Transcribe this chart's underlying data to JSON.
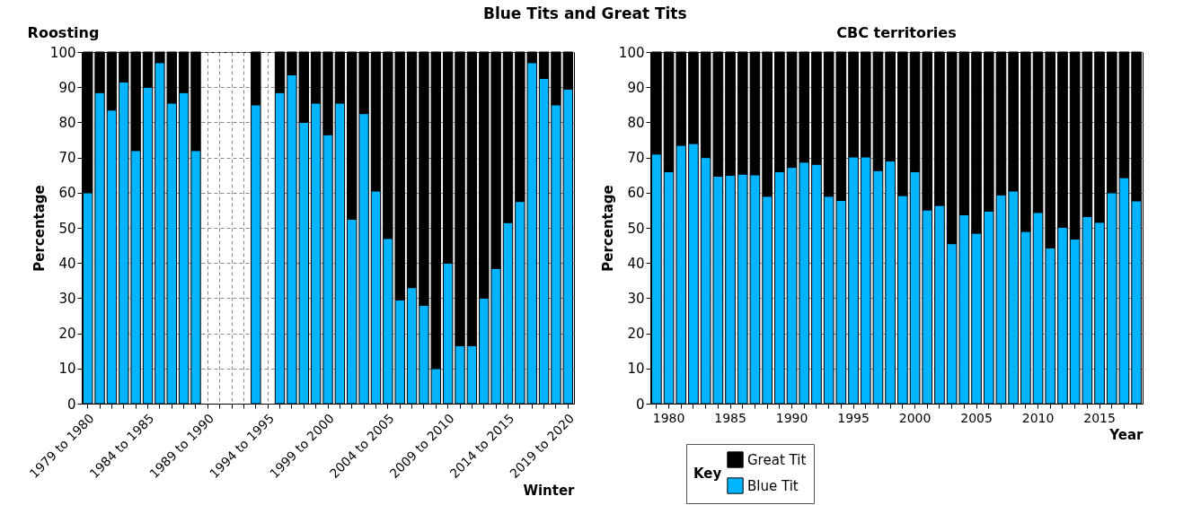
{
  "chart_data": [
    {
      "type": "bar",
      "title": "Blue Tits and Great Tits",
      "subtitle": "Roosting",
      "xlabel": "Winter",
      "ylabel": "Percentage",
      "stacked": true,
      "grid": true,
      "legend": "bottom",
      "legend_title": "Key",
      "categories": [
        "1979 to 1980",
        null,
        null,
        null,
        null,
        "1984 to 1985",
        null,
        null,
        null,
        null,
        "1989 to 1990",
        null,
        null,
        null,
        null,
        "1994 to 1995",
        null,
        null,
        null,
        null,
        "1999 to 2000",
        null,
        null,
        null,
        null,
        "2004 to 2005",
        null,
        null,
        null,
        null,
        "2009 to 2010",
        null,
        null,
        null,
        null,
        "2014 to 2015",
        null,
        null,
        null,
        null,
        "2019 to 2020"
      ],
      "ylim": [
        0,
        100
      ],
      "yticks": [
        0,
        10,
        20,
        30,
        40,
        50,
        60,
        70,
        80,
        90,
        100
      ],
      "series": [
        {
          "name": "Blue Tit",
          "color": "#00b4ff",
          "values": [
            60,
            88.5,
            83.5,
            91.5,
            72,
            90,
            97,
            85.5,
            88.5,
            72,
            null,
            null,
            null,
            null,
            85,
            null,
            88.5,
            93.5,
            80,
            85.5,
            76.5,
            85.5,
            52.5,
            82.5,
            60.5,
            47,
            29.5,
            33,
            28,
            10,
            40,
            16.5,
            16.5,
            30,
            38.5,
            51.5,
            57.5,
            97,
            92.5,
            85,
            89.5
          ]
        },
        {
          "name": "Great Tit",
          "color": "#000000",
          "values": [
            40,
            11.5,
            16.5,
            8.5,
            28,
            10,
            3,
            14.5,
            11.5,
            28,
            null,
            null,
            null,
            null,
            15,
            null,
            11.5,
            6.5,
            20,
            14.5,
            23.5,
            14.5,
            47.5,
            17.5,
            39.5,
            53,
            70.5,
            67,
            72,
            90,
            60,
            83.5,
            83.5,
            70,
            61.5,
            48.5,
            42.5,
            3,
            7.5,
            15,
            10.5
          ]
        }
      ]
    },
    {
      "type": "bar",
      "title": "CBC territories",
      "xlabel": "Year",
      "ylabel": "Percentage",
      "stacked": true,
      "grid": true,
      "categories": [
        null,
        "1980",
        null,
        null,
        null,
        null,
        "1985",
        null,
        null,
        null,
        null,
        "1990",
        null,
        null,
        null,
        null,
        "1995",
        null,
        null,
        null,
        null,
        "2000",
        null,
        null,
        null,
        null,
        "2005",
        null,
        null,
        null,
        null,
        "2010",
        null,
        null,
        null,
        null,
        "2015",
        null,
        null,
        null
      ],
      "ylim": [
        0,
        100
      ],
      "yticks": [
        0,
        10,
        20,
        30,
        40,
        50,
        60,
        70,
        80,
        90,
        100
      ],
      "series": [
        {
          "color": "#00b4ff",
          "values": [
            71,
            66,
            73.5,
            74,
            70,
            64.7,
            65,
            65.3,
            65.1,
            59,
            66,
            67.2,
            68.7,
            68.1,
            59,
            57.8,
            70.2,
            70.2,
            66.3,
            69,
            59.2,
            66,
            55.1,
            56.4,
            45.5,
            53.7,
            48.5,
            54.8,
            59.4,
            60.5,
            49,
            54.4,
            44.3,
            50.2,
            46.8,
            53.2,
            51.6,
            60,
            64.3,
            57.7
          ]
        },
        {
          "color": "#000000",
          "values": [
            29,
            34,
            26.5,
            26,
            30,
            35.3,
            35,
            34.7,
            34.9,
            41,
            34,
            32.8,
            31.3,
            31.9,
            41,
            42.2,
            29.8,
            29.8,
            33.7,
            31,
            40.8,
            34,
            44.9,
            43.6,
            54.5,
            46.3,
            51.5,
            45.2,
            40.6,
            39.5,
            51,
            45.6,
            55.7,
            49.8,
            53.2,
            46.8,
            48.4,
            40,
            35.7,
            42.3
          ]
        }
      ]
    }
  ]
}
